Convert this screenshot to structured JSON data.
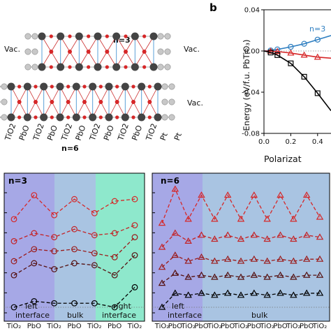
{
  "panel_a": {
    "top_label": "n=3",
    "bottom_label": "n=6",
    "vac_left": "Vac.",
    "vac_right": "Vac.",
    "vac_right_bottom": "Vac.",
    "layer_labels": [
      "TiO2",
      "PbO",
      "TiO2",
      "PbO",
      "TiO2",
      "PbO",
      "TiO2",
      "PbO",
      "TiO2",
      "PbO",
      "TiO2",
      "Pt",
      "Pt"
    ]
  },
  "panel_b": {
    "letter": "b",
    "series_label": "n=3",
    "ylabel": "Energy (eV/f.u. PbTiO₃)",
    "xlabel": "Polarizat",
    "colors": {
      "n3": "#2f7fc1",
      "red": "#d62728",
      "black": "#000000"
    }
  },
  "panel_c": {
    "label": "n=3",
    "region_left": "left interface",
    "region_left_l1": "left",
    "region_left_l2": "interface",
    "region_mid": "bulk",
    "region_right_l1": "right",
    "region_right_l2": "interface",
    "xticks": [
      "TiO₂",
      "PbO",
      "TiO₂",
      "PbO",
      "TiO₂",
      "PbO",
      "TiO₂"
    ]
  },
  "panel_d": {
    "label": "n=6",
    "region_left_l1": "left",
    "region_left_l2": "interface",
    "region_mid": "bulk",
    "xticks": [
      "TiO₂",
      "PbO",
      "TiO₂",
      "PbO",
      "TiO₂",
      "PbO",
      "TiO₂",
      "PbO",
      "TiO₂",
      "PbO",
      "TiO₂",
      "PbO",
      "TiO₂"
    ]
  },
  "chart_data": [
    {
      "type": "line",
      "xlabel": "Polarizat",
      "ylabel": "Energy (eV/f.u. PbTiO₃)",
      "xlim": [
        0,
        0.5
      ],
      "ylim": [
        -0.08,
        0.04
      ],
      "xticks": [
        "0.0",
        "0.2",
        "0.4"
      ],
      "yticks": [
        "0.04",
        "0.00",
        "-0.04",
        "-0.08"
      ],
      "x": [
        0.0,
        0.05,
        0.1,
        0.2,
        0.3,
        0.4,
        0.5
      ],
      "series": [
        {
          "name": "n=3",
          "color": "#2f7fc1",
          "marker": "circle",
          "values": [
            0.0,
            0.0005,
            0.0015,
            0.004,
            0.007,
            0.011,
            0.015
          ]
        },
        {
          "name": "",
          "color": "#d62728",
          "marker": "triangle",
          "values": [
            0.0,
            -0.0002,
            -0.0005,
            -0.002,
            -0.004,
            -0.006,
            -0.007
          ]
        },
        {
          "name": "",
          "color": "#000000",
          "marker": "square",
          "values": [
            0.0,
            -0.0015,
            -0.004,
            -0.012,
            -0.025,
            -0.041,
            -0.058
          ]
        }
      ]
    },
    {
      "type": "line",
      "title": "n=3",
      "categories": [
        "TiO2",
        "PbO",
        "TiO2",
        "PbO",
        "TiO2",
        "PbO",
        "TiO2"
      ],
      "regions": [
        "left interface",
        "bulk",
        "right interface"
      ],
      "series": [
        {
          "name": "",
          "color": "#d62728",
          "values": [
            4.4,
            5.6,
            4.6,
            5.4,
            4.7,
            5.3,
            5.4
          ]
        },
        {
          "name": "",
          "color": "#c42326",
          "values": [
            3.3,
            3.7,
            3.5,
            3.9,
            3.6,
            3.7,
            4.1
          ]
        },
        {
          "name": "",
          "color": "#9b1b1b",
          "values": [
            2.3,
            2.9,
            2.8,
            2.9,
            2.7,
            2.5,
            3.5
          ]
        },
        {
          "name": "",
          "color": "#541010",
          "values": [
            1.6,
            2.2,
            1.9,
            2.2,
            2.1,
            1.6,
            2.6
          ]
        },
        {
          "name": "",
          "color": "#000000",
          "values": [
            0.0,
            0.3,
            0.2,
            0.2,
            0.2,
            0.0,
            1.0
          ]
        }
      ]
    },
    {
      "type": "line",
      "title": "n=6",
      "categories": [
        "TiO2",
        "PbO",
        "TiO2",
        "PbO",
        "TiO2",
        "PbO",
        "TiO2",
        "PbO",
        "TiO2",
        "PbO",
        "TiO2",
        "PbO",
        "TiO2"
      ],
      "regions": [
        "left interface",
        "bulk"
      ],
      "series": [
        {
          "name": "",
          "color": "#d62728",
          "values": [
            4.2,
            5.9,
            4.4,
            5.6,
            4.4,
            5.6,
            4.4,
            5.6,
            4.4,
            5.6,
            4.4,
            5.6,
            4.5
          ]
        },
        {
          "name": "",
          "color": "#c42326",
          "values": [
            3.0,
            3.7,
            3.3,
            3.6,
            3.4,
            3.6,
            3.4,
            3.6,
            3.4,
            3.6,
            3.4,
            3.6,
            3.5
          ]
        },
        {
          "name": "",
          "color": "#9b1b1b",
          "values": [
            2.0,
            2.6,
            2.3,
            2.5,
            2.3,
            2.4,
            2.3,
            2.4,
            2.3,
            2.4,
            2.3,
            2.4,
            2.4
          ]
        },
        {
          "name": "",
          "color": "#541010",
          "values": [
            1.2,
            1.7,
            1.5,
            1.6,
            1.5,
            1.6,
            1.5,
            1.6,
            1.5,
            1.6,
            1.5,
            1.6,
            1.6
          ]
        },
        {
          "name": "",
          "color": "#000000",
          "values": [
            0.0,
            0.7,
            0.6,
            0.7,
            0.6,
            0.7,
            0.6,
            0.7,
            0.6,
            0.7,
            0.6,
            0.7,
            0.7
          ]
        }
      ]
    }
  ]
}
